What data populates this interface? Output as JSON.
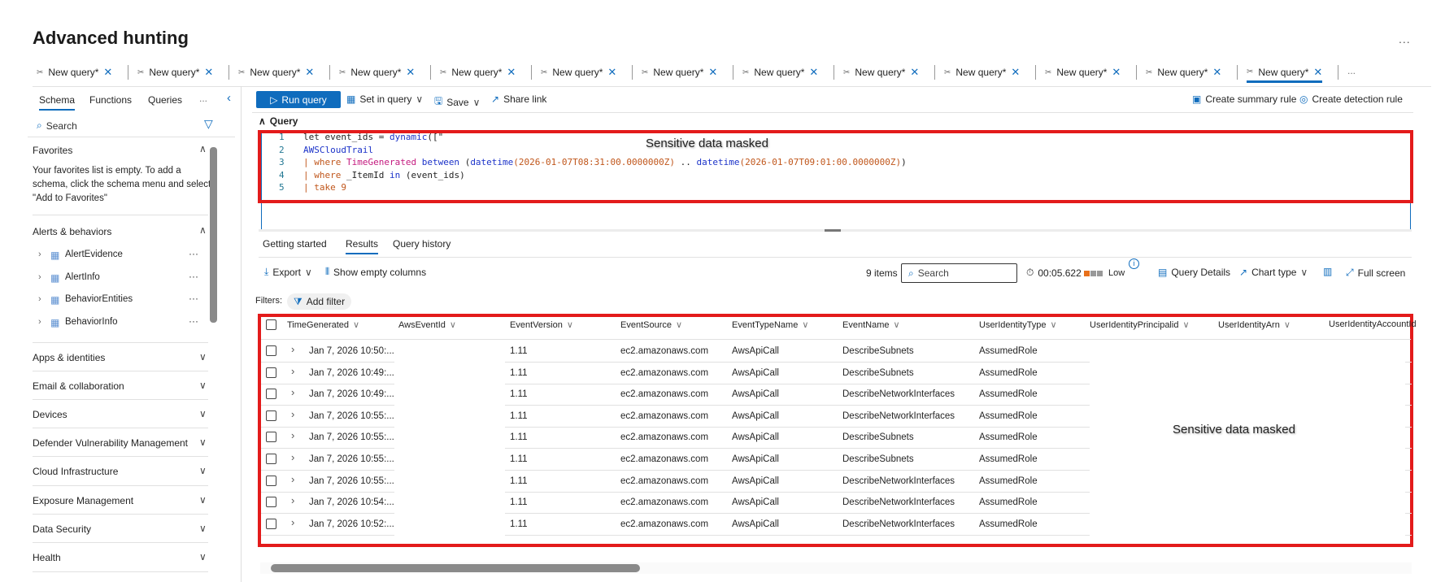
{
  "page": {
    "title": "Advanced hunting",
    "more": "..."
  },
  "tabs": {
    "label": "New query*",
    "count": 13,
    "active_index": 12,
    "overflow": "..."
  },
  "sidebar": {
    "tabs": [
      "Schema",
      "Functions",
      "Queries"
    ],
    "more": "...",
    "active_tab": "Schema",
    "search_placeholder": "Search",
    "favorites": {
      "title": "Favorites",
      "empty_text": [
        "Your favorites list is empty. To add a",
        "schema, click the schema menu and select",
        "\"Add to Favorites\""
      ]
    },
    "alerts": {
      "title": "Alerts & behaviors",
      "items": [
        "AlertEvidence",
        "AlertInfo",
        "BehaviorEntities",
        "BehaviorInfo"
      ]
    },
    "sections": [
      "Apps & identities",
      "Email & collaboration",
      "Devices",
      "Defender Vulnerability Management",
      "Cloud Infrastructure",
      "Exposure Management",
      "Data Security",
      "Health"
    ]
  },
  "toolbar": {
    "run": "Run query",
    "set_in_query": "Set in query",
    "save": "Save",
    "share": "Share link",
    "summary_rule": "Create summary rule",
    "detection_rule": "Create detection rule"
  },
  "query": {
    "header": "Query",
    "mask_text": "Sensitive data masked",
    "lines": [
      [
        [
          "",
          "let event_ids = "
        ],
        [
          "fn",
          "dynamic"
        ],
        [
          "",
          "([\""
        ]
      ],
      [
        [
          "fn",
          "AWSCloudTrail"
        ]
      ],
      [
        [
          "kw",
          "| where "
        ],
        [
          "pk",
          "TimeGenerated"
        ],
        [
          "fn",
          " between "
        ],
        [
          "",
          "("
        ],
        [
          "fn",
          "datetime"
        ],
        [
          "kw",
          "(2026-01-07T08:31:00.0000000Z)"
        ],
        [
          "",
          " .. "
        ],
        [
          "fn",
          "datetime"
        ],
        [
          "kw",
          "(2026-01-07T09:01:00.0000000Z)"
        ],
        [
          "",
          ")"
        ]
      ],
      [
        [
          "kw",
          "| where "
        ],
        [
          "",
          "_ItemId"
        ],
        [
          "fn",
          " in "
        ],
        [
          "",
          "(event_ids)"
        ]
      ],
      [
        [
          "kw",
          "| take 9"
        ]
      ]
    ]
  },
  "results": {
    "tabs": [
      "Getting started",
      "Results",
      "Query history"
    ],
    "active_tab": "Results",
    "export": "Export",
    "show_empty": "Show empty columns",
    "items": "9 items",
    "search_placeholder": "Search",
    "duration": "00:05.622",
    "resource_usage": "Low",
    "query_details": "Query Details",
    "chart_type": "Chart type",
    "full_screen": "Full screen",
    "filters_label": "Filters:",
    "add_filter": "Add filter",
    "mask_text": "Sensitive data masked",
    "columns": [
      "TimeGenerated",
      "AwsEventId",
      "EventVersion",
      "EventSource",
      "EventTypeName",
      "EventName",
      "UserIdentityType",
      "UserIdentityPrincipalid",
      "UserIdentityArn",
      "UserIdentityAccountId"
    ],
    "rows": [
      [
        "Jan 7, 2026 10:50:...",
        "",
        "1.11",
        "ec2.amazonaws.com",
        "AwsApiCall",
        "DescribeSubnets",
        "AssumedRole"
      ],
      [
        "Jan 7, 2026 10:49:...",
        "",
        "1.11",
        "ec2.amazonaws.com",
        "AwsApiCall",
        "DescribeSubnets",
        "AssumedRole"
      ],
      [
        "Jan 7, 2026 10:49:...",
        "",
        "1.11",
        "ec2.amazonaws.com",
        "AwsApiCall",
        "DescribeNetworkInterfaces",
        "AssumedRole"
      ],
      [
        "Jan 7, 2026 10:55:...",
        "",
        "1.11",
        "ec2.amazonaws.com",
        "AwsApiCall",
        "DescribeNetworkInterfaces",
        "AssumedRole"
      ],
      [
        "Jan 7, 2026 10:55:...",
        "",
        "1.11",
        "ec2.amazonaws.com",
        "AwsApiCall",
        "DescribeSubnets",
        "AssumedRole"
      ],
      [
        "Jan 7, 2026 10:55:...",
        "",
        "1.11",
        "ec2.amazonaws.com",
        "AwsApiCall",
        "DescribeSubnets",
        "AssumedRole"
      ],
      [
        "Jan 7, 2026 10:55:...",
        "",
        "1.11",
        "ec2.amazonaws.com",
        "AwsApiCall",
        "DescribeNetworkInterfaces",
        "AssumedRole"
      ],
      [
        "Jan 7, 2026 10:54:...",
        "",
        "1.11",
        "ec2.amazonaws.com",
        "AwsApiCall",
        "DescribeNetworkInterfaces",
        "AssumedRole"
      ],
      [
        "Jan 7, 2026 10:52:...",
        "",
        "1.11",
        "ec2.amazonaws.com",
        "AwsApiCall",
        "DescribeNetworkInterfaces",
        "AssumedRole"
      ]
    ]
  },
  "colors": {
    "accent": "#0f6cbd",
    "mask_border": "#e31b1b",
    "usage_high": "#e8701a",
    "usage_low": "#999999"
  }
}
